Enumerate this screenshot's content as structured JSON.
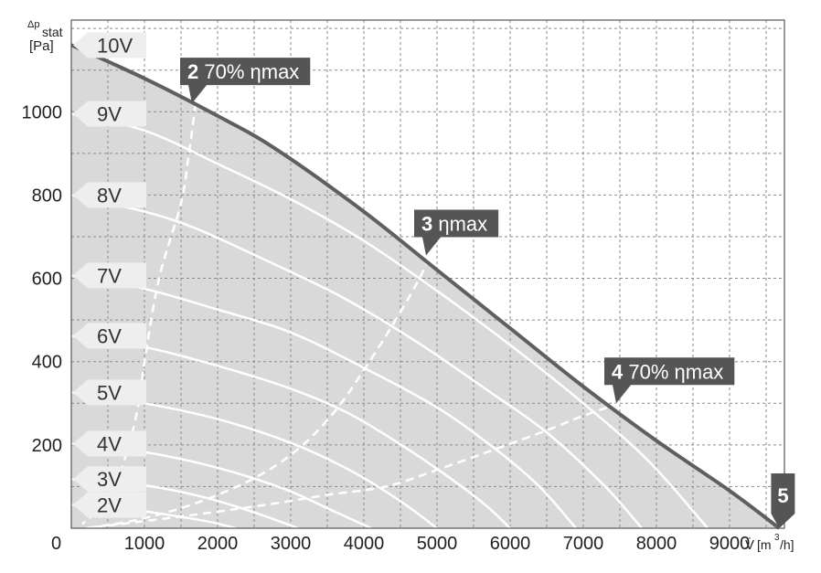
{
  "chart_data": {
    "type": "line",
    "y_axis": {
      "symbol": "Δp",
      "subscript": "stat",
      "unit": "[Pa]",
      "min": 0,
      "max": 1220,
      "ticks": [
        0,
        200,
        400,
        600,
        800,
        1000
      ]
    },
    "x_axis": {
      "symbol": "V̇",
      "unit_prefix": "[m",
      "unit_sup": "3",
      "unit_suffix": "/h]",
      "min": 0,
      "max": 9750,
      "ticks": [
        1000,
        2000,
        3000,
        4000,
        5000,
        6000,
        7000,
        8000,
        9000
      ]
    },
    "origin_label": "0",
    "grid": "dashed",
    "voltage_labels": [
      {
        "text": "10V",
        "y": 1160
      },
      {
        "text": "9V",
        "y": 995
      },
      {
        "text": "8V",
        "y": 800
      },
      {
        "text": "7V",
        "y": 607
      },
      {
        "text": "6V",
        "y": 462
      },
      {
        "text": "5V",
        "y": 326
      },
      {
        "text": "4V",
        "y": 203
      },
      {
        "text": "3V",
        "y": 118
      },
      {
        "text": "2V",
        "y": 56
      }
    ],
    "series": [
      {
        "id": "10V",
        "x": [
          0,
          1000,
          2000,
          2800,
          4000,
          5000,
          6000,
          7000,
          8000,
          9000,
          9680
        ],
        "y": [
          1160,
          1080,
          990,
          910,
          760,
          620,
          480,
          340,
          210,
          90,
          0
        ]
      },
      {
        "id": "9V",
        "x": [
          0,
          1000,
          2000,
          3000,
          4000,
          5000,
          6000,
          7000,
          7900,
          8700
        ],
        "y": [
          995,
          955,
          875,
          790,
          690,
          570,
          440,
          300,
          160,
          0
        ]
      },
      {
        "id": "8V",
        "x": [
          0,
          1000,
          1700,
          2700,
          3700,
          4700,
          5700,
          6500,
          7300,
          7800
        ],
        "y": [
          800,
          760,
          720,
          640,
          555,
          450,
          330,
          230,
          100,
          0
        ]
      },
      {
        "id": "7V",
        "x": [
          0,
          1000,
          2000,
          3000,
          4000,
          5000,
          5800,
          6400,
          6900
        ],
        "y": [
          607,
          575,
          525,
          470,
          385,
          290,
          190,
          100,
          0
        ]
      },
      {
        "id": "6V",
        "x": [
          0,
          1000,
          2000,
          3000,
          3800,
          4600,
          5300,
          5700,
          6000
        ],
        "y": [
          462,
          435,
          390,
          335,
          275,
          190,
          105,
          50,
          0
        ]
      },
      {
        "id": "5V",
        "x": [
          0,
          1000,
          2000,
          3000,
          3800,
          4500,
          5000
        ],
        "y": [
          326,
          300,
          262,
          205,
          140,
          65,
          0
        ]
      },
      {
        "id": "4V",
        "x": [
          0,
          1000,
          2000,
          2900,
          3600,
          4100
        ],
        "y": [
          203,
          183,
          145,
          95,
          40,
          0
        ]
      },
      {
        "id": "3V",
        "x": [
          0,
          1000,
          1800,
          2500,
          3100
        ],
        "y": [
          118,
          103,
          75,
          38,
          0
        ]
      },
      {
        "id": "2V",
        "x": [
          0,
          800,
          1400,
          1900,
          2250
        ],
        "y": [
          56,
          45,
          30,
          15,
          0
        ]
      }
    ],
    "efficiency_curves": [
      {
        "id": "70% ηmax (low flow)",
        "x": [
          1700,
          1600,
          1500,
          1200,
          1000,
          900,
          700,
          450,
          150
        ],
        "y": [
          1020,
          890,
          780,
          600,
          400,
          280,
          150,
          60,
          10
        ]
      },
      {
        "id": "ηmax",
        "x": [
          4900,
          4700,
          4400,
          4000,
          3600,
          3100,
          2500,
          1700,
          900,
          200
        ],
        "y": [
          650,
          580,
          490,
          380,
          280,
          190,
          120,
          60,
          20,
          0
        ]
      },
      {
        "id": "70% ηmax (high flow)",
        "x": [
          7500,
          7000,
          6500,
          5800,
          5000,
          4300,
          3500,
          2800,
          1800,
          900,
          200
        ],
        "y": [
          300,
          270,
          235,
          190,
          140,
          100,
          80,
          60,
          35,
          15,
          0
        ]
      }
    ],
    "callouts": [
      {
        "num": "2",
        "text": "70% ηmax",
        "x": 1650,
        "y": 1020
      },
      {
        "num": "3",
        "text": "ηmax",
        "x": 4850,
        "y": 655
      },
      {
        "num": "4",
        "text": "70% ηmax",
        "x": 7450,
        "y": 300
      },
      {
        "num": "5",
        "text": "",
        "x": 9680,
        "y": 0
      }
    ],
    "colors": {
      "fill": "#d9d9d9",
      "outer_curve": "#5f5f5f",
      "curves": "#ffffff",
      "callout": "#555555",
      "tag": "#eeeeee",
      "grid": "#8a8a8a"
    }
  }
}
